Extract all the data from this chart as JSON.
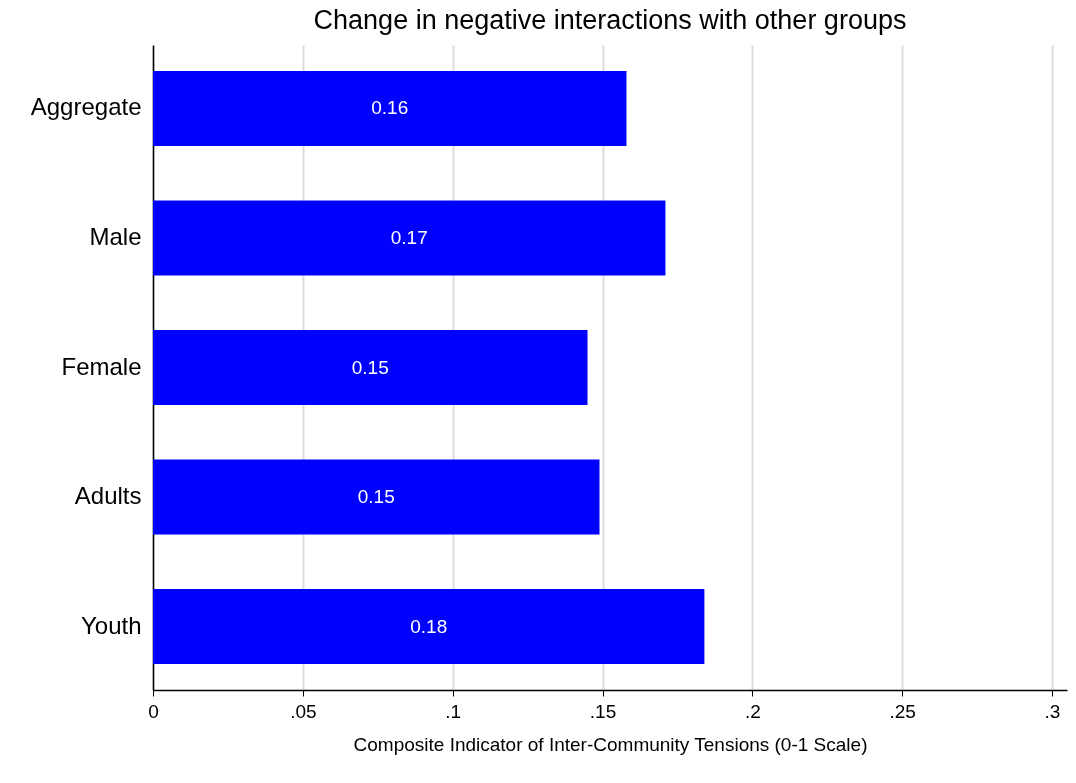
{
  "chart_data": {
    "type": "bar",
    "orientation": "horizontal",
    "title": "Change in negative interactions with other groups",
    "xlabel": "Composite Indicator of Inter-Community Tensions (0-1 Scale)",
    "categories": [
      "Aggregate",
      "Male",
      "Female",
      "Adults",
      "Youth"
    ],
    "values": [
      0.158,
      0.171,
      0.145,
      0.149,
      0.184
    ],
    "value_labels": [
      "0.16",
      "0.17",
      "0.15",
      "0.15",
      "0.18"
    ],
    "color": "#0000ff",
    "xlim": [
      0,
      0.305
    ],
    "xticks": [
      0,
      {
        "value": 0.05,
        "label": ".05"
      },
      {
        "value": 0.1,
        "label": ".1"
      },
      {
        "value": 0.15,
        "label": ".15"
      },
      {
        "value": 0.2,
        "label": ".2"
      },
      {
        "value": 0.25,
        "label": ".25"
      },
      {
        "value": 0.3,
        "label": ".3"
      }
    ],
    "grid": "x"
  }
}
